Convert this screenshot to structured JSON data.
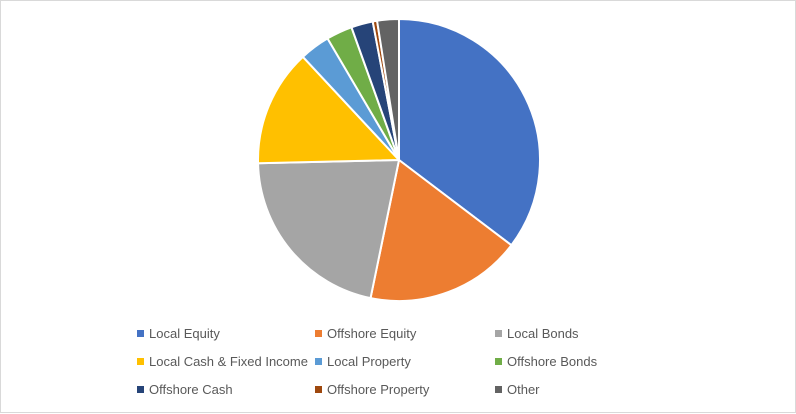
{
  "chart_data": {
    "type": "pie",
    "title": "",
    "legend_position": "bottom",
    "series": [
      {
        "categories": [
          "Local Equity",
          "Offshore Equity",
          "Local Bonds",
          "Local Cash & Fixed Income",
          "Local Property",
          "Offshore Bonds",
          "Offshore Cash",
          "Offshore Property",
          "Other"
        ],
        "values": [
          35.5,
          18.0,
          21.5,
          13.5,
          3.5,
          3.0,
          2.5,
          0.5,
          2.5
        ],
        "colors": [
          "#4472C4",
          "#ED7D31",
          "#A5A5A5",
          "#FFC000",
          "#5B9BD5",
          "#70AD47",
          "#264478",
          "#9E480E",
          "#636363"
        ]
      }
    ]
  }
}
